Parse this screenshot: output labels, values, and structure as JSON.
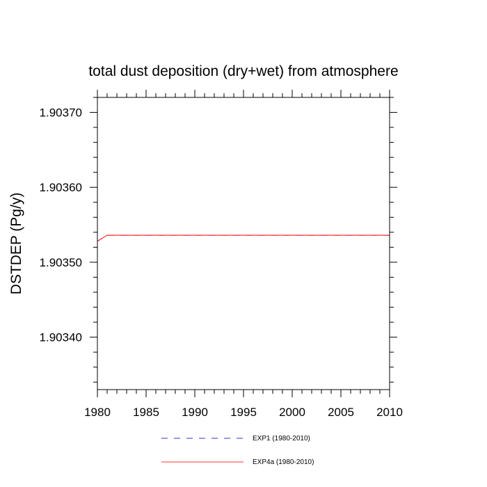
{
  "chart_data": {
    "type": "line",
    "title": "total dust deposition (dry+wet) from atmosphere",
    "xlabel": "",
    "ylabel": "DSTDEP  (Pg/y)",
    "xlim": [
      1980,
      2010
    ],
    "ylim": [
      1.90333,
      1.90372
    ],
    "x_ticks": [
      1980,
      1985,
      1990,
      1995,
      2000,
      2005,
      2010
    ],
    "y_ticks": [
      1.9034,
      1.9035,
      1.9036,
      1.9037
    ],
    "y_tick_labels": [
      "1.90340",
      "1.90350",
      "1.90360",
      "1.90370"
    ],
    "x": [
      1980,
      1981,
      1982,
      1983,
      1984,
      1985,
      1986,
      1987,
      1988,
      1989,
      1990,
      1991,
      1992,
      1993,
      1994,
      1995,
      1996,
      1997,
      1998,
      1999,
      2000,
      2001,
      2002,
      2003,
      2004,
      2005,
      2006,
      2007,
      2008,
      2009,
      2010
    ],
    "series": [
      {
        "name": "EXP1 (1980-2010)",
        "color": "#3333cc",
        "dash": "dashed",
        "values": [
          1.903528,
          1.903536,
          1.903536,
          1.903536,
          1.903536,
          1.903536,
          1.903536,
          1.903536,
          1.903536,
          1.903536,
          1.903536,
          1.903536,
          1.903536,
          1.903536,
          1.903536,
          1.903536,
          1.903536,
          1.903536,
          1.903536,
          1.903536,
          1.903536,
          1.903536,
          1.903536,
          1.903536,
          1.903536,
          1.903536,
          1.903536,
          1.903536,
          1.903536,
          1.903536,
          1.903536
        ]
      },
      {
        "name": "EXP4a (1980-2010)",
        "color": "#ff3333",
        "dash": "solid",
        "values": [
          1.903528,
          1.903536,
          1.903536,
          1.903536,
          1.903536,
          1.903536,
          1.903536,
          1.903536,
          1.903536,
          1.903536,
          1.903536,
          1.903536,
          1.903536,
          1.903536,
          1.903536,
          1.903536,
          1.903536,
          1.903536,
          1.903536,
          1.903536,
          1.903536,
          1.903536,
          1.903536,
          1.903536,
          1.903536,
          1.903536,
          1.903536,
          1.903536,
          1.903536,
          1.903536,
          1.903536
        ]
      }
    ],
    "grid": false,
    "legend_position": "bottom"
  }
}
